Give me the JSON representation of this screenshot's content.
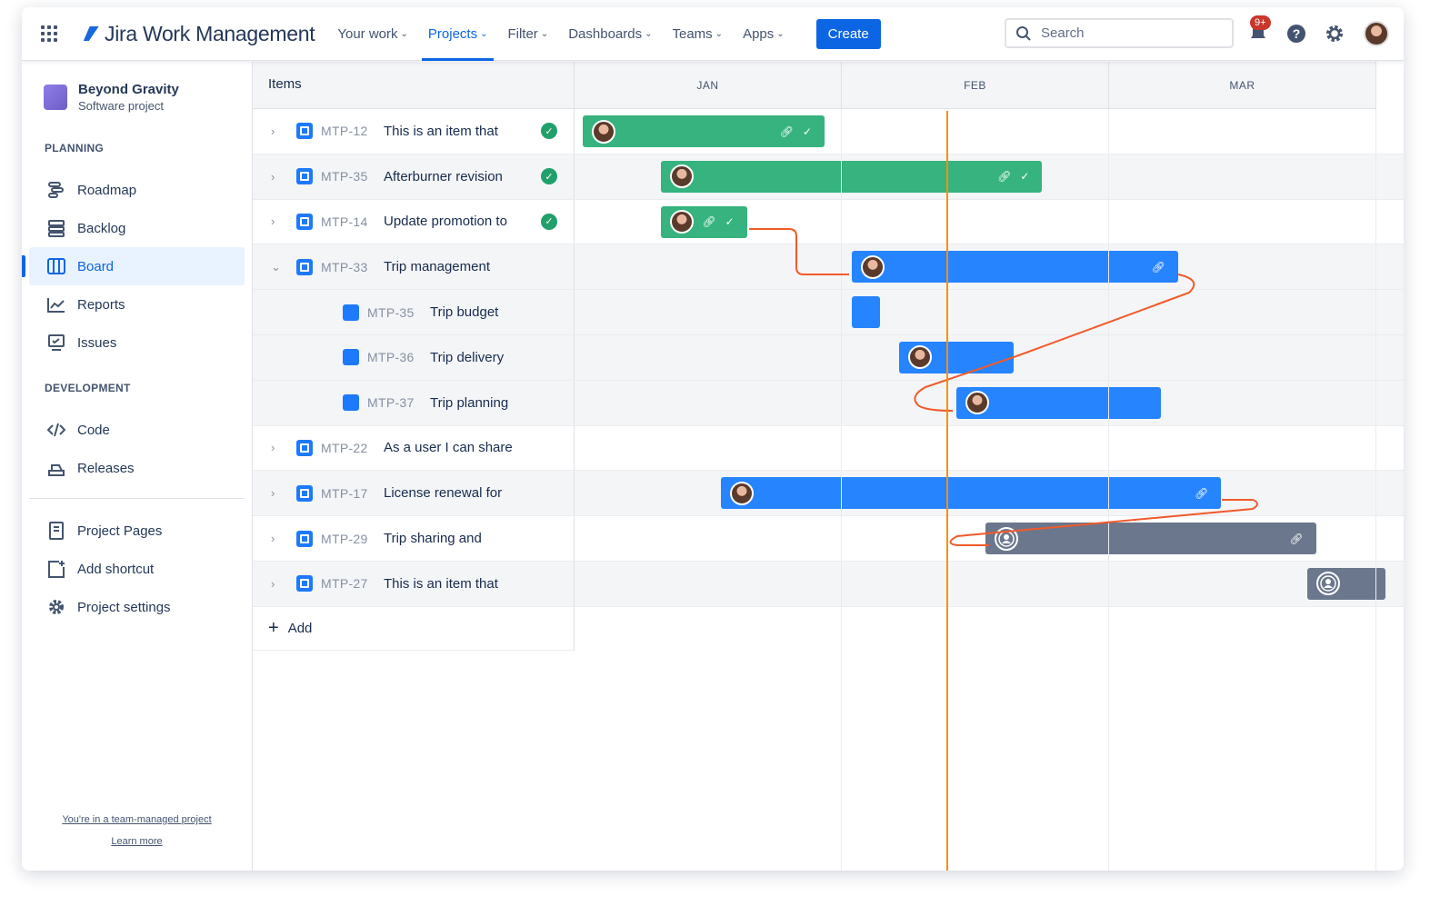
{
  "header": {
    "app_name": "Jira Work Management",
    "nav": [
      {
        "label": "Your work"
      },
      {
        "label": "Projects",
        "active": true
      },
      {
        "label": "Filter"
      },
      {
        "label": "Dashboards"
      },
      {
        "label": "Teams"
      },
      {
        "label": "Apps"
      }
    ],
    "create_label": "Create",
    "search_placeholder": "Search",
    "notification_count": "9+"
  },
  "sidebar": {
    "project_name": "Beyond Gravity",
    "project_type": "Software project",
    "planning_title": "PLANNING",
    "planning": [
      {
        "label": "Roadmap",
        "icon": "roadmap-icon"
      },
      {
        "label": "Backlog",
        "icon": "backlog-icon"
      },
      {
        "label": "Board",
        "icon": "board-icon",
        "active": true
      },
      {
        "label": "Reports",
        "icon": "reports-icon"
      },
      {
        "label": "Issues",
        "icon": "issues-icon"
      }
    ],
    "development_title": "DEVELOPMENT",
    "development": [
      {
        "label": "Code",
        "icon": "code-icon"
      },
      {
        "label": "Releases",
        "icon": "releases-icon"
      }
    ],
    "other": [
      {
        "label": "Project Pages",
        "icon": "pages-icon"
      },
      {
        "label": "Add shortcut",
        "icon": "add-shortcut-icon"
      },
      {
        "label": "Project settings",
        "icon": "settings-icon"
      }
    ],
    "footer_note": "You're in a team-managed project",
    "footer_link": "Learn more"
  },
  "timeline": {
    "items_header": "Items",
    "months": [
      "JAN",
      "FEB",
      "MAR"
    ],
    "today": "02-12",
    "add_label": "Add",
    "colors": {
      "done": "#36b37e",
      "in_progress": "#2684ff",
      "todo": "#6b778c",
      "dependency": "#f15a29",
      "today": "#f79009"
    },
    "rows": [
      {
        "key": "MTP-12",
        "title": "This is an item that",
        "type": "story",
        "expand": "collapsed",
        "done": true,
        "bar": {
          "start": "01-02",
          "end": "01-30",
          "status": "done",
          "link": true,
          "check": true
        }
      },
      {
        "key": "MTP-35",
        "title": "Afterburner revision",
        "type": "story",
        "expand": "collapsed",
        "done": true,
        "bar": {
          "start": "01-11",
          "end": "02-22",
          "status": "done",
          "link": true,
          "check": true
        }
      },
      {
        "key": "MTP-14",
        "title": "Update promotion to",
        "type": "story",
        "expand": "collapsed",
        "done": true,
        "bar": {
          "start": "01-11",
          "end": "01-21",
          "status": "done",
          "link": true,
          "check": true
        }
      },
      {
        "key": "MTP-33",
        "title": "Trip management",
        "type": "story",
        "expand": "expanded",
        "bar": {
          "start": "02-02",
          "end": "03-09",
          "status": "in_progress",
          "link": true
        }
      },
      {
        "key": "MTP-35",
        "title": "Trip budget",
        "type": "subtask",
        "bar": {
          "start": "02-02",
          "end": "02-05",
          "status": "in_progress",
          "noavatar": true
        }
      },
      {
        "key": "MTP-36",
        "title": "Trip delivery",
        "type": "subtask",
        "bar": {
          "start": "02-07",
          "end": "02-19",
          "status": "in_progress"
        }
      },
      {
        "key": "MTP-37",
        "title": "Trip planning",
        "type": "subtask",
        "bar": {
          "start": "02-13",
          "end": "03-07",
          "status": "in_progress"
        }
      },
      {
        "key": "MTP-22",
        "title": "As a user I can share",
        "type": "story",
        "expand": "collapsed"
      },
      {
        "key": "MTP-17",
        "title": "License renewal for",
        "type": "story",
        "expand": "collapsed",
        "bar": {
          "start": "01-18",
          "end": "03-14",
          "status": "in_progress",
          "link": true
        }
      },
      {
        "key": "MTP-29",
        "title": "Trip sharing and",
        "type": "story",
        "expand": "collapsed",
        "bar": {
          "start": "02-16",
          "end": "03-25",
          "status": "todo",
          "link": true,
          "unassigned": true
        }
      },
      {
        "key": "MTP-27",
        "title": "This is an item that",
        "type": "story",
        "expand": "collapsed",
        "bar": {
          "start": "03-24",
          "end": "04-02",
          "status": "todo",
          "unassigned": true
        }
      }
    ]
  }
}
